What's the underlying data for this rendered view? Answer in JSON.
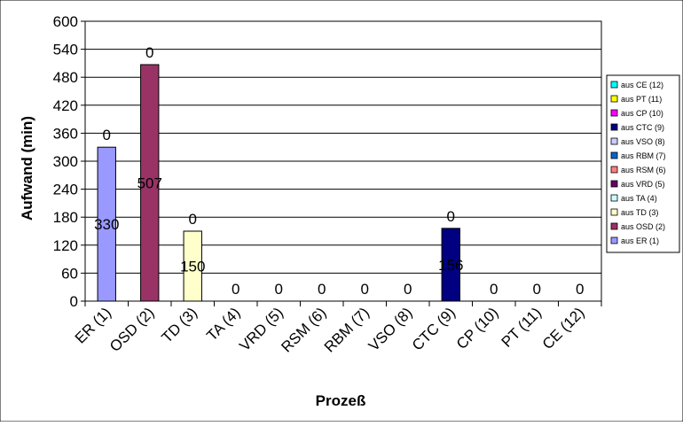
{
  "chart_data": {
    "type": "bar",
    "xlabel": "Prozeß",
    "ylabel": "Aufwand (min)",
    "ylim": [
      0,
      600
    ],
    "yticks": [
      0,
      60,
      120,
      180,
      240,
      300,
      360,
      420,
      480,
      540,
      600
    ],
    "grid": true,
    "legend_position": "right",
    "categories": [
      "ER (1)",
      "OSD (2)",
      "TD (3)",
      "TA (4)",
      "VRD (5)",
      "RSM (6)",
      "RBM (7)",
      "VSO (8)",
      "CTC (9)",
      "CP (10)",
      "PT (11)",
      "CE (12)"
    ],
    "series": [
      {
        "name": "aus ER (1)",
        "color": "#9999ff",
        "values": [
          330,
          0,
          0,
          0,
          0,
          0,
          0,
          0,
          0,
          0,
          0,
          0
        ]
      },
      {
        "name": "aus OSD (2)",
        "color": "#993366",
        "values": [
          0,
          507,
          0,
          0,
          0,
          0,
          0,
          0,
          0,
          0,
          0,
          0
        ]
      },
      {
        "name": "aus TD (3)",
        "color": "#ffffcc",
        "values": [
          0,
          0,
          150,
          0,
          0,
          0,
          0,
          0,
          0,
          0,
          0,
          0
        ]
      },
      {
        "name": "aus TA (4)",
        "color": "#ccffff",
        "values": [
          0,
          0,
          0,
          0,
          0,
          0,
          0,
          0,
          0,
          0,
          0,
          0
        ]
      },
      {
        "name": "aus VRD (5)",
        "color": "#660066",
        "values": [
          0,
          0,
          0,
          0,
          0,
          0,
          0,
          0,
          0,
          0,
          0,
          0
        ]
      },
      {
        "name": "aus RSM (6)",
        "color": "#ff8080",
        "values": [
          0,
          0,
          0,
          0,
          0,
          0,
          0,
          0,
          0,
          0,
          0,
          0
        ]
      },
      {
        "name": "aus RBM (7)",
        "color": "#0066cc",
        "values": [
          0,
          0,
          0,
          0,
          0,
          0,
          0,
          0,
          0,
          0,
          0,
          0
        ]
      },
      {
        "name": "aus VSO (8)",
        "color": "#ccccff",
        "values": [
          0,
          0,
          0,
          0,
          0,
          0,
          0,
          0,
          0,
          0,
          0,
          0
        ]
      },
      {
        "name": "aus CTC (9)",
        "color": "#000080",
        "values": [
          0,
          0,
          0,
          0,
          0,
          0,
          0,
          0,
          156,
          0,
          0,
          0
        ]
      },
      {
        "name": "aus CP (10)",
        "color": "#ff00ff",
        "values": [
          0,
          0,
          0,
          0,
          0,
          0,
          0,
          0,
          0,
          0,
          0,
          0
        ]
      },
      {
        "name": "aus PT (11)",
        "color": "#ffff00",
        "values": [
          0,
          0,
          0,
          0,
          0,
          0,
          0,
          0,
          0,
          0,
          0,
          0
        ]
      },
      {
        "name": "aus CE (12)",
        "color": "#00ffff",
        "values": [
          0,
          0,
          0,
          0,
          0,
          0,
          0,
          0,
          0,
          0,
          0,
          0
        ]
      }
    ],
    "bar_value_labels": [
      "330",
      "507",
      "150",
      "",
      "",
      "",
      "",
      "",
      "156",
      "",
      "",
      ""
    ],
    "top_labels": [
      "0",
      "0",
      "0",
      "0",
      "0",
      "0",
      "0",
      "0",
      "0",
      "0",
      "0",
      "0"
    ],
    "legend_order": [
      "aus CE (12)",
      "aus PT (11)",
      "aus CP (10)",
      "aus CTC (9)",
      "aus VSO (8)",
      "aus RBM (7)",
      "aus RSM (6)",
      "aus VRD (5)",
      "aus TA (4)",
      "aus TD (3)",
      "aus OSD (2)",
      "aus ER (1)"
    ]
  }
}
